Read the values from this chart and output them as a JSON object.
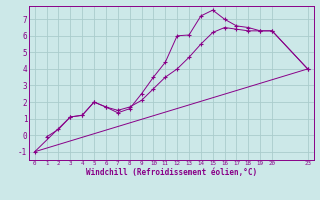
{
  "bg_color": "#cce8e8",
  "grid_color": "#aacccc",
  "line_color": "#880088",
  "xlabel": "Windchill (Refroidissement éolien,°C)",
  "xlim": [
    -0.5,
    23.5
  ],
  "ylim": [
    -1.5,
    7.8
  ],
  "yticks": [
    -1,
    0,
    1,
    2,
    3,
    4,
    5,
    6,
    7
  ],
  "xtick_positions": [
    0,
    1,
    2,
    3,
    4,
    5,
    6,
    7,
    8,
    9,
    10,
    11,
    12,
    13,
    14,
    15,
    16,
    17,
    18,
    19,
    20,
    23
  ],
  "xtick_labels": [
    "0",
    "1",
    "2",
    "3",
    "4",
    "5",
    "6",
    "7",
    "8",
    "9",
    "10",
    "11",
    "12",
    "13",
    "14",
    "15",
    "16",
    "17",
    "18",
    "19",
    "20",
    "23"
  ],
  "line1_x": [
    1,
    2,
    3,
    4,
    5,
    6,
    7,
    8,
    9,
    10,
    11,
    12,
    13,
    14,
    15,
    16,
    17,
    18,
    19,
    20,
    23
  ],
  "line1_y": [
    -0.1,
    0.35,
    1.1,
    1.2,
    2.0,
    1.7,
    1.35,
    1.6,
    2.5,
    3.5,
    4.4,
    6.0,
    6.05,
    7.2,
    7.55,
    7.0,
    6.6,
    6.5,
    6.3,
    6.3,
    4.0
  ],
  "line2_x": [
    0,
    3,
    4,
    5,
    6,
    7,
    8,
    9,
    10,
    11,
    12,
    13,
    14,
    15,
    16,
    17,
    18,
    19,
    20,
    23
  ],
  "line2_y": [
    -1,
    1.1,
    1.2,
    2.0,
    1.7,
    1.5,
    1.7,
    2.1,
    2.8,
    3.5,
    4.0,
    4.7,
    5.5,
    6.2,
    6.5,
    6.4,
    6.3,
    6.3,
    6.3,
    4.0
  ],
  "line3_x": [
    0,
    23
  ],
  "line3_y": [
    -1,
    4.0
  ]
}
